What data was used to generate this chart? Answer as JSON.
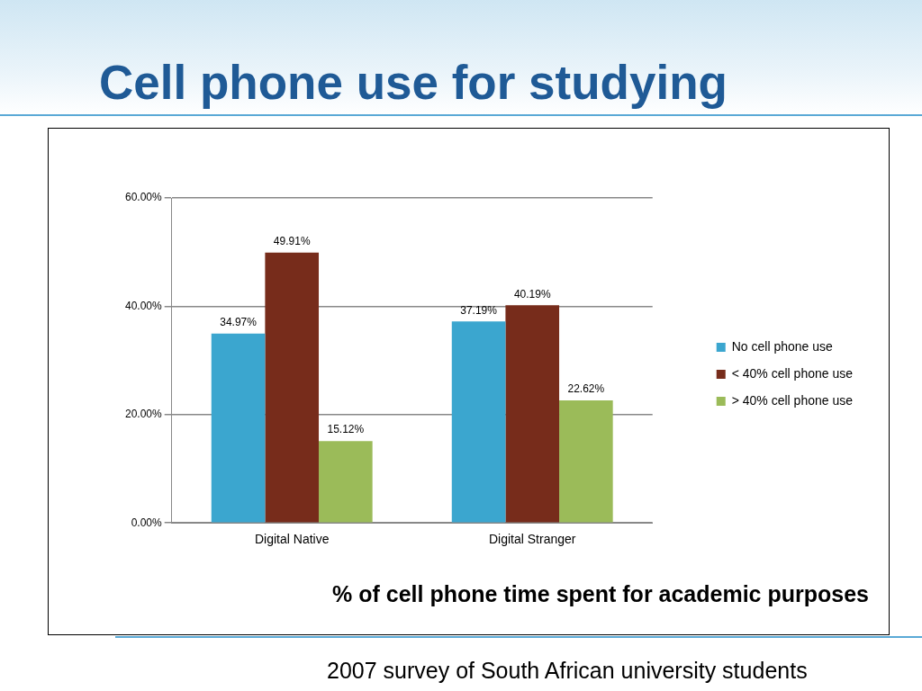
{
  "chart_data": {
    "type": "bar",
    "title": "Cell phone use for studying",
    "categories": [
      "Digital Native",
      "Digital Stranger"
    ],
    "series": [
      {
        "name": "No cell phone use",
        "color": "#3ba6cf",
        "values": [
          34.97,
          37.19
        ],
        "value_labels": [
          "34.97%",
          "37.19%"
        ]
      },
      {
        "name": "< 40% cell phone use",
        "color": "#772c1b",
        "values": [
          49.91,
          40.19
        ],
        "value_labels": [
          "49.91%",
          "40.19%"
        ]
      },
      {
        "name": "> 40% cell phone use",
        "color": "#9bbb59",
        "values": [
          15.12,
          22.62
        ],
        "value_labels": [
          "15.12%",
          "22.62%"
        ]
      }
    ],
    "ylim": [
      0,
      60
    ],
    "yticks": [
      {
        "value": 0,
        "label": "0.00%"
      },
      {
        "value": 20,
        "label": "20.00%"
      },
      {
        "value": 40,
        "label": "40.00%"
      },
      {
        "value": 60,
        "label": "60.00%"
      }
    ],
    "grid": "y",
    "legend": "right",
    "annotations": [
      "% of cell phone time spent for academic purposes",
      "2007 survey of South African university students"
    ]
  }
}
